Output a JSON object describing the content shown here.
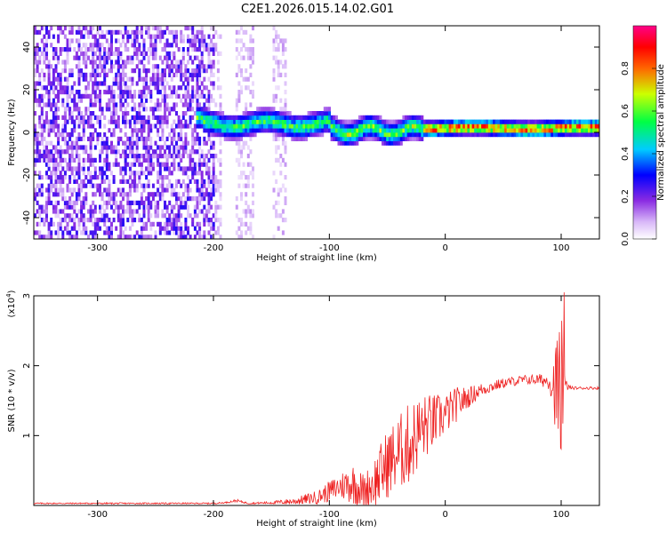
{
  "figure": {
    "title": "C2E1.2026.015.14.02.G01"
  },
  "chart_data": [
    {
      "type": "heatmap",
      "name": "spectrogram",
      "xlabel": "Height of straight line (km)",
      "ylabel": "Frequency (Hz)",
      "xlim": [
        -355,
        133
      ],
      "ylim": [
        -50,
        50
      ],
      "xticks": [
        -300,
        -200,
        -100,
        0,
        100
      ],
      "yticks": [
        -40,
        -20,
        0,
        20,
        40
      ],
      "colorbar": {
        "label": "Normalized spectral amplitude",
        "range": [
          0,
          1
        ],
        "ticks": [
          0.0,
          0.2,
          0.4,
          0.6,
          0.8
        ],
        "colormap": [
          "#ffffff",
          "#8a2be2",
          "#0000ff",
          "#00ffff",
          "#00ff00",
          "#ffff00",
          "#ff0000",
          "#ff00ff"
        ]
      },
      "regions": [
        {
          "x_range": [
            -355,
            -200
          ],
          "description": "noise",
          "amplitude": 0.15
        },
        {
          "x_range": [
            -200,
            -100
          ],
          "center_freq": 3,
          "amplitude": 0.45
        },
        {
          "x_range": [
            -100,
            -20
          ],
          "center_freq": 0,
          "amplitude": 0.5
        },
        {
          "x_range": [
            -20,
            133
          ],
          "center_freq": 1,
          "amplitude": 0.85
        }
      ]
    },
    {
      "type": "line",
      "name": "snr",
      "xlabel": "Height of straight line (km)",
      "ylabel": "SNR (10 * v/v)",
      "y_multiplier": "(x10",
      "y_multiplier_exp": "4",
      "xlim": [
        -355,
        133
      ],
      "ylim": [
        0,
        3
      ],
      "xticks": [
        -300,
        -200,
        -100,
        0,
        100
      ],
      "yticks": [
        1,
        2,
        3
      ],
      "series": [
        {
          "color": "#ee2222",
          "x": [
            -355,
            -300,
            -250,
            -200,
            -190,
            -180,
            -170,
            -150,
            -130,
            -110,
            -100,
            -90,
            -80,
            -70,
            -60,
            -50,
            -40,
            -30,
            -20,
            -10,
            0,
            10,
            20,
            30,
            40,
            50,
            60,
            70,
            80,
            90,
            95,
            100,
            102,
            105,
            110,
            120,
            133
          ],
          "y": [
            0.03,
            0.03,
            0.03,
            0.03,
            0.04,
            0.07,
            0.03,
            0.04,
            0.06,
            0.12,
            0.2,
            0.28,
            0.32,
            0.2,
            0.35,
            0.6,
            0.75,
            0.9,
            1.1,
            1.2,
            1.3,
            1.45,
            1.55,
            1.65,
            1.7,
            1.75,
            1.78,
            1.8,
            1.8,
            1.78,
            1.7,
            1.65,
            1.7,
            1.7,
            1.68,
            1.68,
            1.68
          ],
          "noise_amplitude": [
            0.01,
            0.01,
            0.01,
            0.01,
            0.01,
            0.02,
            0.01,
            0.02,
            0.05,
            0.1,
            0.15,
            0.2,
            0.3,
            0.25,
            0.4,
            0.5,
            0.55,
            0.6,
            0.5,
            0.4,
            0.3,
            0.25,
            0.15,
            0.1,
            0.08,
            0.07,
            0.07,
            0.07,
            0.08,
            0.12,
            0.6,
            1.2,
            0.5,
            0.05,
            0.02,
            0.02,
            0.02
          ]
        }
      ]
    }
  ]
}
